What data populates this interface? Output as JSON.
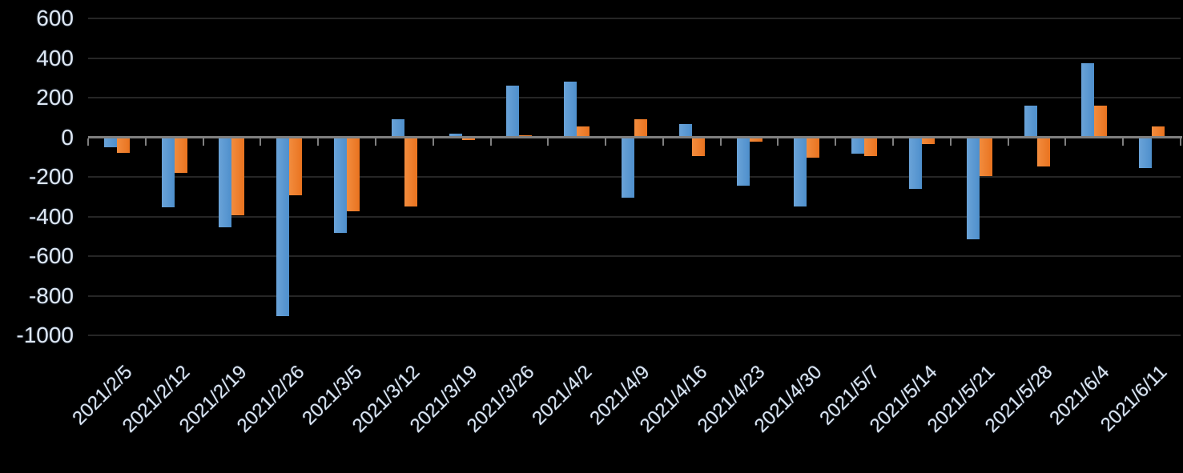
{
  "chart_data": {
    "type": "bar",
    "title": "",
    "xlabel": "",
    "ylabel": "",
    "categories": [
      "2021/2/5",
      "2021/2/12",
      "2021/2/19",
      "2021/2/26",
      "2021/3/5",
      "2021/3/12",
      "2021/3/19",
      "2021/3/26",
      "2021/4/2",
      "2021/4/9",
      "2021/4/16",
      "2021/4/23",
      "2021/4/30",
      "2021/5/7",
      "2021/5/14",
      "2021/5/21",
      "2021/5/28",
      "2021/6/4",
      "2021/6/11"
    ],
    "series": [
      {
        "name": "series-1-blue",
        "color": "#4E8FCC",
        "color_light": "#6AA3D8",
        "values": [
          -45,
          -350,
          -450,
          -900,
          -480,
          90,
          20,
          260,
          280,
          -300,
          65,
          -240,
          -345,
          -80,
          -255,
          -510,
          160,
          375,
          -150
        ]
      },
      {
        "name": "series-2-orange",
        "color": "#E9731F",
        "color_light": "#F28C3E",
        "values": [
          -75,
          -175,
          -390,
          -290,
          -370,
          -345,
          -10,
          10,
          55,
          90,
          -90,
          -20,
          -100,
          -90,
          -30,
          -190,
          -145,
          160,
          55
        ]
      }
    ],
    "ylim": [
      -1000,
      600
    ],
    "y_ticks": [
      600,
      400,
      200,
      0,
      -200,
      -400,
      -600,
      -800,
      -1000
    ],
    "y_tick_labels": [
      "600",
      "400",
      "200",
      "0",
      "-200",
      "-400",
      "-600",
      "-800",
      "-1000"
    ],
    "grid": true,
    "legend": false,
    "x_label_rotation_deg": 45,
    "background_color": "#000000",
    "axis_line_color": "#7F7F7F",
    "gridline_color": "#262626",
    "tick_label_color": "#DDE7F3"
  }
}
